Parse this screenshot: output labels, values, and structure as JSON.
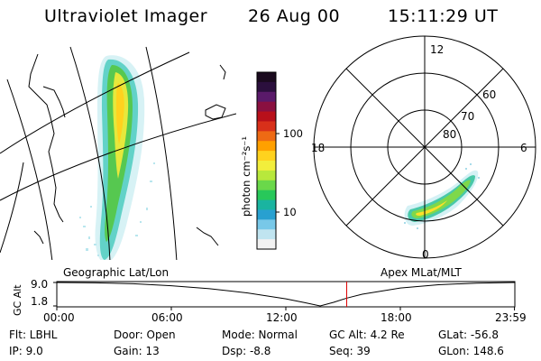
{
  "header": {
    "instrument": "Ultraviolet Imager",
    "date": "26 Aug 00",
    "time": "15:11:29 UT"
  },
  "colorbar": {
    "label": "photon cm⁻²s⁻¹",
    "ticks": [
      "100",
      "10"
    ],
    "colors": [
      "#1a0a1e",
      "#2b0f3d",
      "#5a1a6a",
      "#8a1040",
      "#b8101a",
      "#d8301a",
      "#ee6a14",
      "#ffa000",
      "#ffd21e",
      "#f2ee3c",
      "#b8e83c",
      "#6ad84a",
      "#28c85a",
      "#1ab4a0",
      "#28a0d0",
      "#78c8e8",
      "#c0e4f0",
      "#f2f2f2"
    ]
  },
  "geo_panel": {
    "label": "Geographic Lat/Lon"
  },
  "polar_panel": {
    "label": "Apex MLat/MLT",
    "mlt_labels": {
      "top": "12",
      "left": "18",
      "right": "6",
      "bottom": "0"
    },
    "lat_labels": [
      "60",
      "70",
      "80"
    ]
  },
  "chart_data": {
    "type": "line",
    "title": "",
    "ylabel": "GC Alt",
    "yticks": [
      "9.0",
      "1.8"
    ],
    "ylim": [
      1.8,
      9.0
    ],
    "xticks": [
      "00:00",
      "06:00",
      "12:00",
      "18:00",
      "23:59"
    ],
    "xlim_hours": [
      0,
      24
    ],
    "current_time_hours": 15.19,
    "series": [
      {
        "name": "GC Alt (Re)",
        "x": [
          0,
          2,
          4,
          6,
          8,
          10,
          12,
          13,
          13.8,
          14.5,
          15.2,
          16,
          18,
          20,
          22,
          23.98
        ],
        "y": [
          9.0,
          8.9,
          8.6,
          8.0,
          7.1,
          5.8,
          4.0,
          2.8,
          1.8,
          2.9,
          4.2,
          5.4,
          7.3,
          8.3,
          8.8,
          9.0
        ]
      }
    ]
  },
  "info": {
    "flt": "Flt: LBHL",
    "ip": "IP:  9.0",
    "door": "Door: Open",
    "gain": "Gain: 13",
    "mode": "Mode: Normal",
    "dsp": "Dsp:    -8.8",
    "gc_alt": "GC Alt: 4.2 Re",
    "seq": "Seq: 39",
    "glat": "GLat:  -56.8",
    "glon": "GLon: 148.6"
  }
}
